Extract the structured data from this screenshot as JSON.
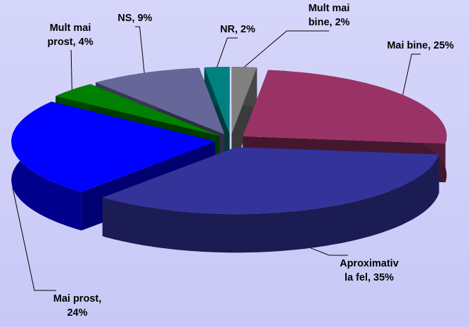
{
  "chart_data": {
    "type": "pie3d",
    "values": [
      2,
      25,
      35,
      24,
      4,
      9,
      2
    ],
    "value_labels": [
      [
        "Mult mai",
        "bine, 2%"
      ],
      [
        "Mai bine, 25%"
      ],
      [
        "Aproximativ",
        "la fel, 35%"
      ],
      [
        "Mai prost,",
        "24%"
      ],
      [
        "Mult mai",
        "prost, 4%"
      ],
      [
        "NS, 9%"
      ],
      [
        "NR, 2%"
      ]
    ],
    "colors": [
      "#808080",
      "#993366",
      "#333399",
      "#0000ff",
      "#008000",
      "#666699",
      "#008080"
    ]
  }
}
